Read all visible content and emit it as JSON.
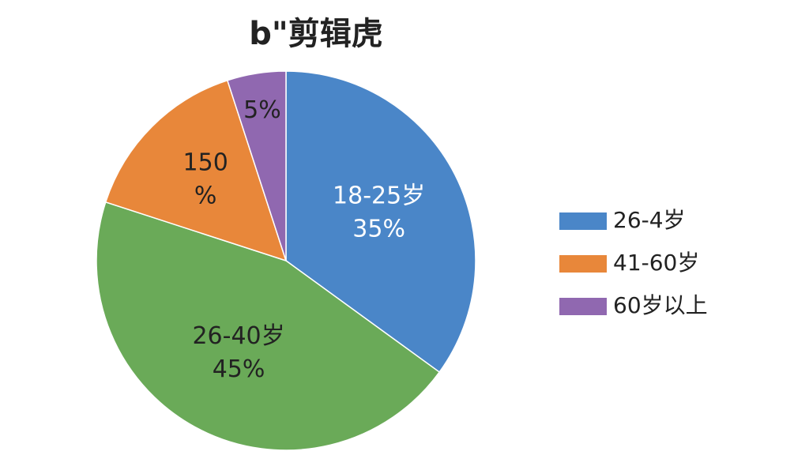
{
  "chart_data": {
    "type": "pie",
    "title": "b\"剪辑虎",
    "categories": [
      "18-25岁",
      "26-40岁",
      null,
      null
    ],
    "values": [
      35,
      45,
      15,
      5
    ],
    "value_labels": [
      "35%",
      "45%",
      null,
      "5%"
    ],
    "colors": [
      "#4a86c8",
      "#6aaa58",
      "#e8873a",
      "#9068b0"
    ],
    "annotations": [
      "150",
      "%"
    ],
    "legend": [
      {
        "name": "26-4岁",
        "color": "#4a86c8"
      },
      {
        "name": "41-60岁",
        "color": "#e8873a"
      },
      {
        "name": "60岁以上",
        "color": "#9068b0"
      }
    ],
    "legend_position": "right"
  }
}
